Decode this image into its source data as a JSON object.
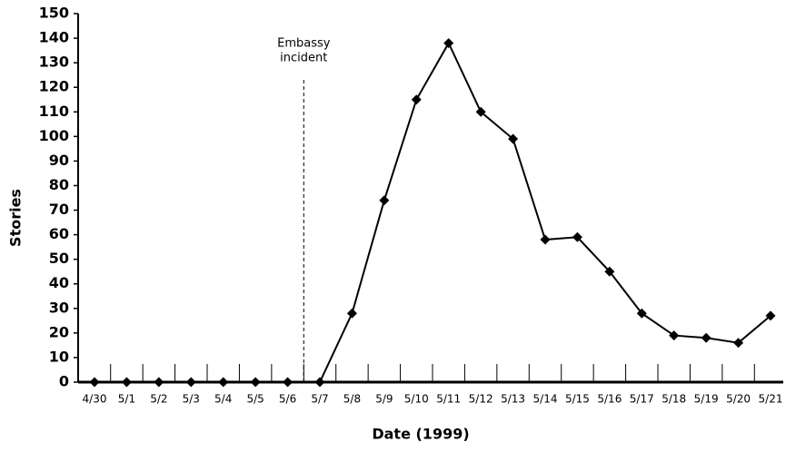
{
  "chart_data": {
    "type": "line",
    "x_label": "Date (1999)",
    "y_label": "Stories",
    "annotation": {
      "lines": [
        "Embassy",
        "incident"
      ]
    },
    "categories": [
      "4/30",
      "5/1",
      "5/2",
      "5/3",
      "5/4",
      "5/5",
      "5/6",
      "5/7",
      "5/8",
      "5/9",
      "5/10",
      "5/11",
      "5/12",
      "5/13",
      "5/14",
      "5/15",
      "5/16",
      "5/17",
      "5/18",
      "5/19",
      "5/20",
      "5/21"
    ],
    "series": [
      {
        "name": "Stories",
        "color": "#000000",
        "values": [
          0,
          0,
          0,
          0,
          0,
          0,
          0,
          0,
          28,
          74,
          115,
          138,
          110,
          99,
          58,
          59,
          45,
          28,
          19,
          18,
          16,
          27
        ]
      }
    ],
    "ylim": [
      0,
      150
    ],
    "yticks": [
      0,
      10,
      20,
      30,
      40,
      50,
      60,
      70,
      80,
      90,
      100,
      110,
      120,
      130,
      140,
      150
    ]
  }
}
